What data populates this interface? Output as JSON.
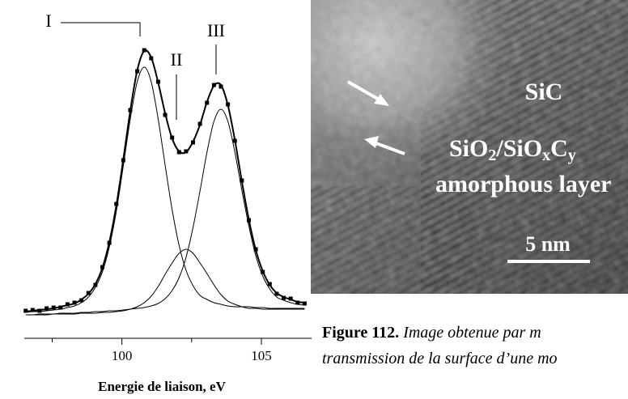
{
  "chart_data": {
    "type": "line",
    "xlabel": "Energie de liaison, eV",
    "x": [
      96.55,
      96.8,
      97.05,
      97.3,
      97.55,
      97.8,
      98.05,
      98.3,
      98.55,
      98.8,
      99.05,
      99.3,
      99.55,
      99.8,
      100.05,
      100.3,
      100.55,
      100.8,
      101.05,
      101.3,
      101.55,
      101.8,
      102.05,
      102.3,
      102.55,
      102.8,
      103.05,
      103.3,
      103.55,
      103.8,
      104.05,
      104.3,
      104.55,
      104.8,
      105.05,
      105.3,
      105.55,
      105.8,
      106.05,
      106.3,
      106.55
    ],
    "xlim": [
      96.5,
      106.8
    ],
    "xticks": [
      100,
      105
    ],
    "xminorticks": [
      97.5,
      102.5
    ],
    "ylim": [
      0,
      350
    ],
    "series": [
      {
        "name": "I",
        "color": "#000000",
        "line_width": 1,
        "values": [
          12,
          13,
          13,
          14,
          15,
          16,
          18,
          20,
          24,
          31,
          43,
          62,
          93,
          137,
          193,
          251,
          297,
          315,
          297,
          251,
          194,
          139,
          95,
          64,
          45,
          33,
          28,
          24,
          22,
          20,
          19,
          19,
          19,
          18,
          18,
          17,
          17,
          17,
          17,
          17,
          17
        ]
      },
      {
        "name": "II",
        "color": "#000000",
        "line_width": 1,
        "values": [
          9,
          9,
          9,
          9,
          10,
          10,
          10,
          10,
          11,
          11,
          11,
          12,
          12,
          13,
          14,
          16,
          19,
          24,
          32,
          44,
          59,
          73,
          85,
          90,
          85,
          73,
          60,
          46,
          34,
          26,
          22,
          19,
          17,
          17,
          16,
          16,
          16,
          16,
          16,
          16,
          16
        ]
      },
      {
        "name": "III",
        "color": "#000000",
        "line_width": 1,
        "values": [
          9,
          9,
          10,
          10,
          10,
          11,
          11,
          11,
          12,
          12,
          13,
          13,
          14,
          14,
          15,
          16,
          17,
          18,
          20,
          23,
          29,
          39,
          55,
          80,
          117,
          162,
          210,
          248,
          263,
          248,
          210,
          163,
          119,
          82,
          57,
          41,
          31,
          27,
          24,
          22,
          21
        ]
      },
      {
        "color": "#000000",
        "line_width": 2,
        "values": [
          13,
          14,
          15,
          16,
          17,
          19,
          21,
          23,
          28,
          35,
          47,
          67,
          99,
          144,
          201,
          261,
          311,
          335,
          327,
          296,
          258,
          227,
          211,
          210,
          223,
          244,
          272,
          292,
          293,
          268,
          225,
          174,
          127,
          89,
          63,
          46,
          36,
          31,
          28,
          25,
          24
        ]
      },
      {
        "color": "#000000",
        "marker": "square",
        "values": [
          14,
          15,
          14,
          17,
          18,
          18,
          22,
          24,
          27,
          36,
          46,
          68,
          98,
          146,
          200,
          262,
          310,
          336,
          326,
          297,
          256,
          228,
          210,
          211,
          222,
          245,
          271,
          293,
          291,
          269,
          224,
          175,
          126,
          90,
          62,
          47,
          35,
          30,
          29,
          24,
          23
        ]
      }
    ]
  },
  "image": {
    "material": "SiC",
    "formula": [
      "SiO",
      "2",
      "/SiO",
      "x",
      "C",
      "y"
    ],
    "layer": "amorphous layer",
    "scale_bar": "5 nm"
  },
  "caption": {
    "label": "Figure 112.",
    "lines": [
      "Image obtenue par m",
      "transmission de la surface d’une mo"
    ]
  }
}
